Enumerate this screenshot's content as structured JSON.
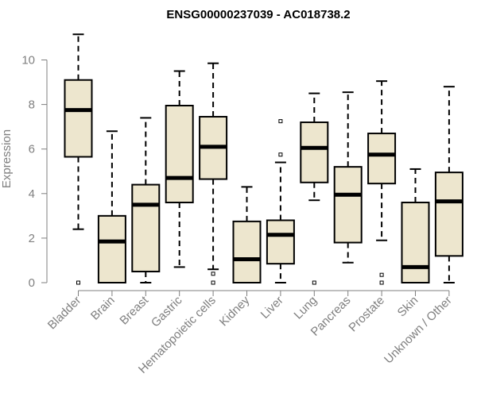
{
  "chart_data": {
    "type": "boxplot",
    "title": "ENSG00000237039 - AC018738.2",
    "xlabel": "",
    "ylabel": "Expression",
    "ylim": [
      0,
      11.3
    ],
    "yticks": [
      0,
      2,
      4,
      6,
      8,
      10
    ],
    "grid": false,
    "legend": "none",
    "colors": {
      "box_fill": "#ede6ce",
      "stroke": "#000000",
      "axis_text": "#7f7f7f"
    },
    "categories": [
      "Bladder",
      "Brain",
      "Breast",
      "Gastric",
      "Hematopoietic cells",
      "Kidney",
      "Liver",
      "Lung",
      "Pancreas",
      "Prostate",
      "Skin",
      "Unknown / Other"
    ],
    "boxes": [
      {
        "name": "Bladder",
        "whisker_low": 2.4,
        "q1": 5.65,
        "median": 7.75,
        "q3": 9.1,
        "whisker_high": 11.15,
        "outliers": [
          0.0
        ]
      },
      {
        "name": "Brain",
        "whisker_low": 0.0,
        "q1": 0.0,
        "median": 1.85,
        "q3": 3.0,
        "whisker_high": 6.8,
        "outliers": []
      },
      {
        "name": "Breast",
        "whisker_low": 0.0,
        "q1": 0.5,
        "median": 3.5,
        "q3": 4.4,
        "whisker_high": 7.4,
        "outliers": []
      },
      {
        "name": "Gastric",
        "whisker_low": 0.7,
        "q1": 3.6,
        "median": 4.7,
        "q3": 7.95,
        "whisker_high": 9.5,
        "outliers": []
      },
      {
        "name": "Hematopoietic cells",
        "whisker_low": 0.6,
        "q1": 4.65,
        "median": 6.1,
        "q3": 7.45,
        "whisker_high": 9.85,
        "outliers": [
          0.4,
          0.0
        ]
      },
      {
        "name": "Kidney",
        "whisker_low": 0.0,
        "q1": 0.0,
        "median": 1.05,
        "q3": 2.75,
        "whisker_high": 4.3,
        "outliers": []
      },
      {
        "name": "Liver",
        "whisker_low": 0.0,
        "q1": 0.85,
        "median": 2.15,
        "q3": 2.8,
        "whisker_high": 5.4,
        "outliers": [
          5.75,
          7.25
        ]
      },
      {
        "name": "Lung",
        "whisker_low": 3.7,
        "q1": 4.5,
        "median": 6.05,
        "q3": 7.2,
        "whisker_high": 8.5,
        "outliers": [
          0.0
        ]
      },
      {
        "name": "Pancreas",
        "whisker_low": 0.9,
        "q1": 1.8,
        "median": 3.95,
        "q3": 5.2,
        "whisker_high": 8.55,
        "outliers": []
      },
      {
        "name": "Prostate",
        "whisker_low": 1.9,
        "q1": 4.45,
        "median": 5.75,
        "q3": 6.7,
        "whisker_high": 9.05,
        "outliers": [
          0.35,
          0.0
        ]
      },
      {
        "name": "Skin",
        "whisker_low": 0.0,
        "q1": 0.0,
        "median": 0.7,
        "q3": 3.6,
        "whisker_high": 5.1,
        "outliers": []
      },
      {
        "name": "Unknown / Other",
        "whisker_low": 0.0,
        "q1": 1.2,
        "median": 3.65,
        "q3": 4.95,
        "whisker_high": 8.8,
        "outliers": []
      }
    ]
  }
}
